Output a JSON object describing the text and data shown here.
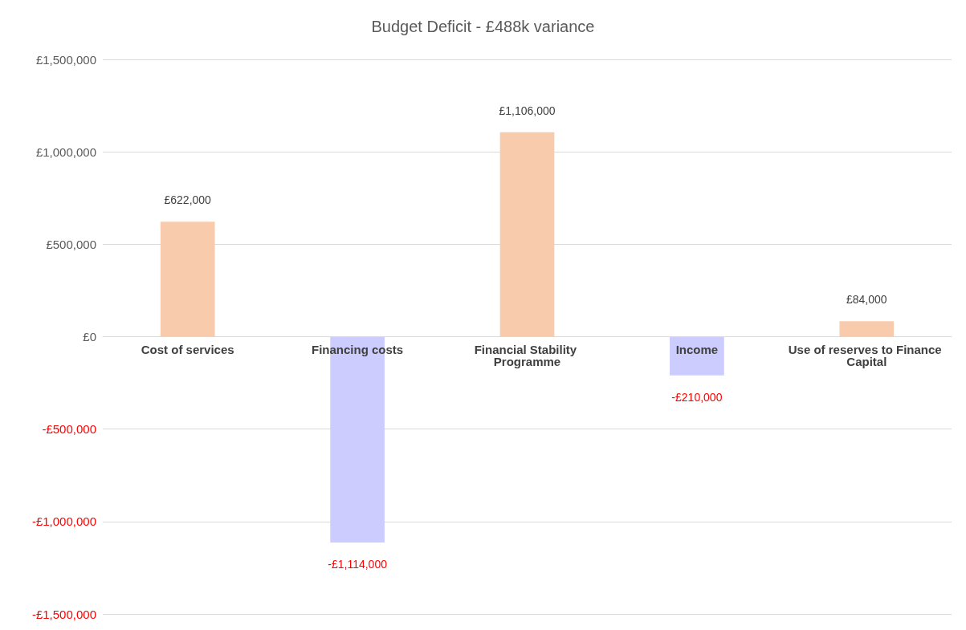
{
  "chart_data": {
    "type": "bar",
    "title": "Budget Deficit - £488k variance",
    "categories": [
      "Cost of services",
      "Financing costs",
      "Financial Stability Programme",
      "Income",
      "Use of reserves to Finance Capital"
    ],
    "values": [
      622000,
      -1114000,
      1106000,
      -210000,
      84000
    ],
    "colors": [
      "#f8cbad",
      "#ccccff",
      "#f8cbad",
      "#ccccff",
      "#f8cbad"
    ],
    "value_labels": [
      "£622,000",
      "-£1,114,000",
      "£1,106,000",
      "-£210,000",
      "£84,000"
    ],
    "ylim": [
      -1500000,
      1500000
    ],
    "yticks": [
      {
        "value": -1500000,
        "label": "-£1,500,000"
      },
      {
        "value": -1000000,
        "label": "-£1,000,000"
      },
      {
        "value": -500000,
        "label": "-£500,000"
      },
      {
        "value": 0,
        "label": "£0"
      },
      {
        "value": 500000,
        "label": "£500,000"
      },
      {
        "value": 1000000,
        "label": "£1,000,000"
      },
      {
        "value": 1500000,
        "label": "£1,500,000"
      }
    ],
    "grid": "y"
  }
}
